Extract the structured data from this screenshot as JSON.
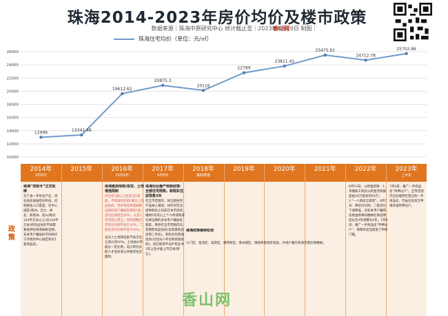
{
  "title": "珠海2014-2023年房价均价及楼市政策",
  "subtitle": "数据来源｜珠海中原研究中心 统计截止至｜2023年8月29日 制图｜",
  "brand": "香山网",
  "legend_label": "珠海住宅均价（单位：元/㎡）",
  "chart_data": {
    "type": "line",
    "x": [
      "2014年",
      "2015年",
      "2016年",
      "2017年",
      "2018年",
      "2019年",
      "2020年",
      "2021年",
      "2022年",
      "2023年"
    ],
    "series": [
      {
        "values": [
          12999,
          13342.48,
          19612.62,
          20875.3,
          20116,
          22789,
          23811.45,
          25475.91,
          24712.78,
          25702.86
        ]
      }
    ],
    "data_labels": [
      "12999",
      "13342.48",
      "19612.62",
      "20875.3",
      "20116",
      "22789",
      "23811.45",
      "25475.91",
      "24712.78",
      "25702.86"
    ],
    "ytick_labels": [
      "10000",
      "12000",
      "14000",
      "16000",
      "18000",
      "20000",
      "22000",
      "24000",
      "26000"
    ],
    "ylim": [
      10000,
      26000
    ],
    "grid": "horizontal",
    "colors": {
      "line": "#6e9ac8",
      "marker": "#4f7fb6",
      "grid": "#e3e3e3"
    }
  },
  "policy_row_label": "政策",
  "years": [
    {
      "year": "2014年",
      "sub": "9月8日"
    },
    {
      "year": "2015年",
      "sub": ""
    },
    {
      "year": "2016年",
      "sub": "10月6日"
    },
    {
      "year": "2017年",
      "sub": "4月8日"
    },
    {
      "year": "2018年",
      "sub": "第四季度"
    },
    {
      "year": "2019年",
      "sub": ""
    },
    {
      "year": "2020年",
      "sub": ""
    },
    {
      "year": "2021年",
      "sub": ""
    },
    {
      "year": "2022年",
      "sub": ""
    },
    {
      "year": "2023年",
      "sub": "上半年"
    }
  ],
  "policies": {
    "p2014_title": "珠海“双限令”正式松绑",
    "p2014_body": "为了进一步优化产业、优化住房发展空间布局，控制居住人口密度，在中心城区(香洲、吉大、拱北、新香洲、前山)购买144平方米以上(含144平方米)的商品住房不再需要提供社保或纳税证明。非本市户籍居民可同样买工作境内中心城区购买1套商品房。",
    "p2016_title": "珠海重启限购/限贷，土地增值限制",
    "p2016_body": "对已有1套以上住房(含)家庭，不得再购买第2套以上商品住房；无本地社保或纳税证明的非户籍居民限购1套；首付比例提至40%，以及2年内禁止转让；同时调整房贷首付比例不低于30%，二套房首付比例不低于40%。",
    "p2016_body2": "竞买人土地保证金不低于出让底价的50%，土地溢价率超过一定比例，竞价转为竞配人才住房或公共租赁住房面积。",
    "p2017_title": "珠海出台最严限购政策：全部住宅限购，新购实住房限售3年",
    "p2017_body": "在全市范围内，将全部住宅产品纳入限购；同时对无法提供购房之日前在本市连续缴纳5年及以上个人所得税或社保证明的非本市户籍居民家庭，暂停在全市范围内向其销售商品住房(含新建商品房和二手房)。新购买的普通住房(包括法人单位和其他组织)，须在取得不动产权证书3年之后才能上市交易(转让)。",
    "p2018_title": "珠海政策继续松动",
    "p2018_body": "斗门区、金湾区、高新区、横琴新区、香洲城区、限购政策逐步放宽，外地户籍在珠海无需社保缴纳。",
    "p2022_body": "6月13日，公积金新政：1.单缴职工购房公积金贷款额度由30万提高到50万；2.“一人购房全家帮”。6月7日：降首付比例，二套首付下调降低，对非本市户籍购房者由原来的缴纳社保证明延长至3年调整为2年。7月8日：推广一手商品房“带押过户”，保障房适当放宽了申购门槛。",
    "p2023_body": "7月4日：推广一手商品房“带押过户”。全市范围内已办理预告登记的一手商品房，可由买卖双方申请办理带押过户。"
  }
}
